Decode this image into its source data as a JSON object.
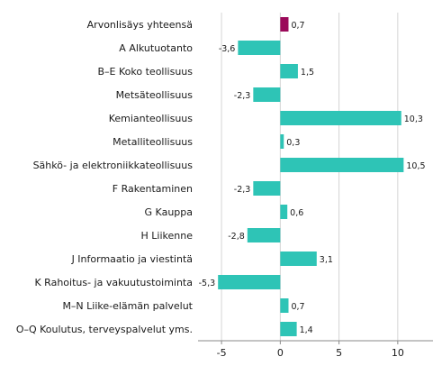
{
  "chart_data": {
    "type": "bar",
    "orientation": "horizontal",
    "title": "",
    "xlabel": "",
    "ylabel": "",
    "categories": [
      "Arvonlisäys yhteensä",
      "A Alkutuotanto",
      "B–E Koko teollisuus",
      "Metsäteollisuus",
      "Kemianteollisuus",
      "Metalliteollisuus",
      "Sähkö- ja elektroniikkateollisuus",
      "F Rakentaminen",
      "G Kauppa",
      "H Liikenne",
      "J Informaatio ja viestintä",
      "K Rahoitus- ja vakuutustoiminta",
      "M–N Liike-elämän palvelut",
      "O–Q Koulutus, terveyspalvelut yms."
    ],
    "values": [
      0.7,
      -3.6,
      1.5,
      -2.3,
      10.3,
      0.3,
      10.5,
      -2.3,
      0.6,
      -2.8,
      3.1,
      -5.3,
      0.7,
      1.4
    ],
    "value_labels": [
      "0,7",
      "-3,6",
      "1,5",
      "-2,3",
      "10,3",
      "0,3",
      "10,5",
      "-2,3",
      "0,6",
      "-2,8",
      "3,1",
      "-5,3",
      "0,7",
      "1,4"
    ],
    "xlim": [
      -7,
      13
    ],
    "xticks": [
      -5,
      0,
      5,
      10
    ],
    "xtick_labels": [
      "-5",
      "0",
      "5",
      "10"
    ],
    "grid": "vertical",
    "colors": {
      "highlight": "#9b0a5a",
      "bar": "#2ec4b6",
      "grid": "#d4d4d4",
      "axis": "#8a8a8a"
    },
    "highlight_index": 0
  }
}
